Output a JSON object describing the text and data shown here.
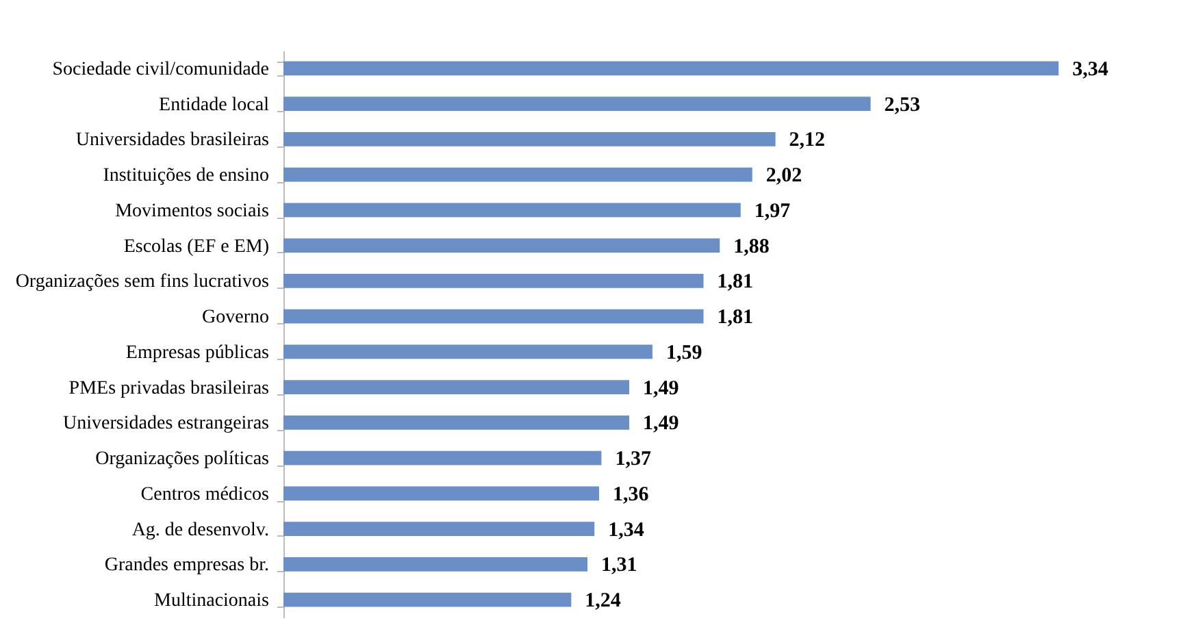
{
  "chart_data": {
    "type": "bar",
    "orientation": "horizontal",
    "categories": [
      "Sociedade civil/comunidade",
      "Entidade local",
      "Universidades brasileiras",
      "Instituições de ensino",
      "Movimentos sociais",
      "Escolas (EF e EM)",
      "Organizações sem fins lucrativos",
      "Governo",
      "Empresas públicas",
      "PMEs privadas brasileiras",
      "Universidades estrangeiras",
      "Organizações políticas",
      "Centros médicos",
      "Ag. de desenvolv.",
      "Grandes empresas br.",
      "Multinacionais"
    ],
    "values": [
      3.34,
      2.53,
      2.12,
      2.02,
      1.97,
      1.88,
      1.81,
      1.81,
      1.59,
      1.49,
      1.49,
      1.37,
      1.36,
      1.34,
      1.31,
      1.24
    ],
    "value_labels": [
      "3,34",
      "2,53",
      "2,12",
      "2,02",
      "1,97",
      "1,88",
      "1,81",
      "1,81",
      "1,59",
      "1,49",
      "1,49",
      "1,37",
      "1,36",
      "1,34",
      "1,31",
      "1,24"
    ],
    "color": "#6a8fc7",
    "tick_labels": "y"
  }
}
